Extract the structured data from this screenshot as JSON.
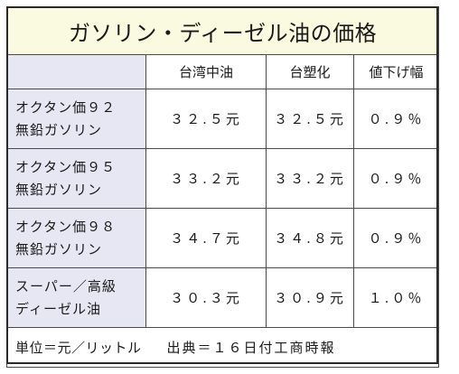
{
  "title": "ガソリン・ディーゼル油の価格",
  "columns": [
    "台湾中油",
    "台塑化",
    "値下げ幅"
  ],
  "rows": [
    {
      "label_line1": "オクタン価９２",
      "label_line2": "無鉛ガソリン",
      "cpc": "３２.５元",
      "fpcc": "３２.５元",
      "cut": "０.９％"
    },
    {
      "label_line1": "オクタン価９５",
      "label_line2": "無鉛ガソリン",
      "cpc": "３３.２元",
      "fpcc": "３３.２元",
      "cut": "０.９％"
    },
    {
      "label_line1": "オクタン価９８",
      "label_line2": "無鉛ガソリン",
      "cpc": "３４.７元",
      "fpcc": "３４.８元",
      "cut": "０.９％"
    },
    {
      "label_line1": "スーパー／高級",
      "label_line2": "ディーゼル油",
      "cpc": "３０.３元",
      "fpcc": "３０.９元",
      "cut": "１.０％"
    }
  ],
  "footer": {
    "unit": "単位＝元／リットル",
    "source": "出典＝１６日付工商時報"
  },
  "colors": {
    "title_bg": "#fafae0",
    "label_bg": "#e7e7f3",
    "border": "#4a4a4a"
  }
}
